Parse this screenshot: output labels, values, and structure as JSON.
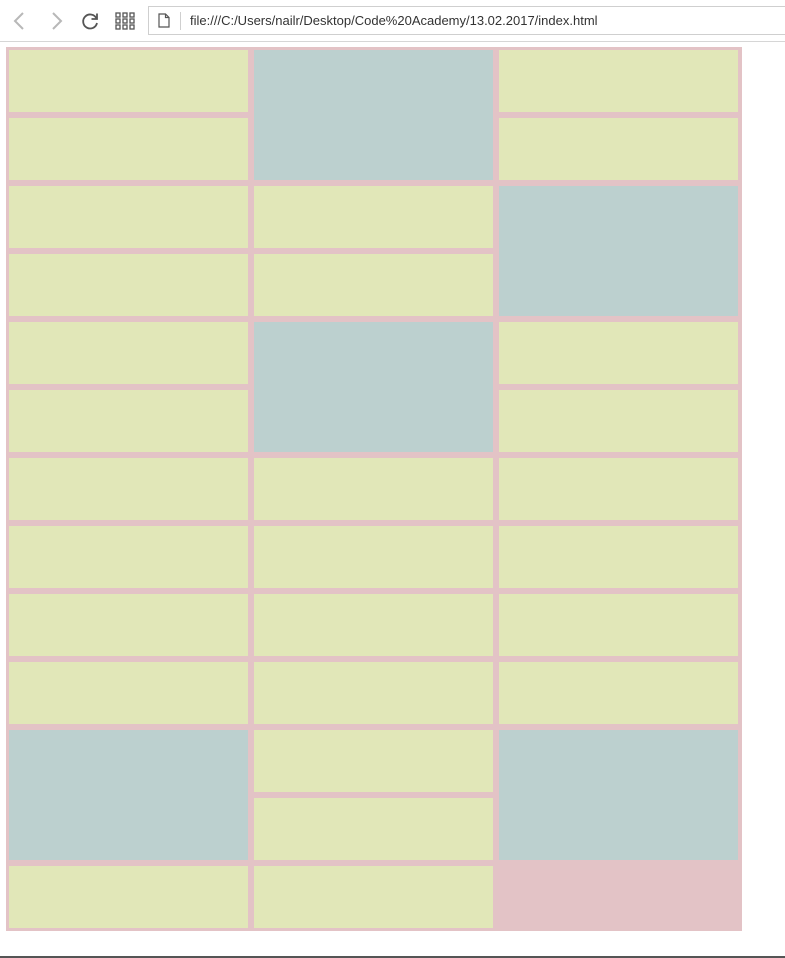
{
  "browser": {
    "url": "file:///C:/Users/nailr/Desktop/Code%20Academy/13.02.2017/index.html",
    "icons": [
      "back-icon",
      "forward-icon",
      "reload-icon",
      "apps-grid-icon",
      "file-icon"
    ]
  },
  "colors": {
    "page_background": "#e3c3c6",
    "small_tile": "#e1e7b8",
    "big_tile": "#bcd0cf"
  },
  "masonry": {
    "columns": [
      {
        "tiles": [
          "small",
          "small",
          "small",
          "small",
          "small",
          "small",
          "small",
          "small",
          "small",
          "small",
          "big",
          "small"
        ]
      },
      {
        "tiles": [
          "big",
          "small",
          "small",
          "big",
          "small",
          "small",
          "small",
          "small",
          "small",
          "small",
          "small"
        ]
      },
      {
        "tiles": [
          "small",
          "small",
          "big",
          "small",
          "small",
          "small",
          "small",
          "small",
          "small",
          "big"
        ]
      }
    ]
  }
}
